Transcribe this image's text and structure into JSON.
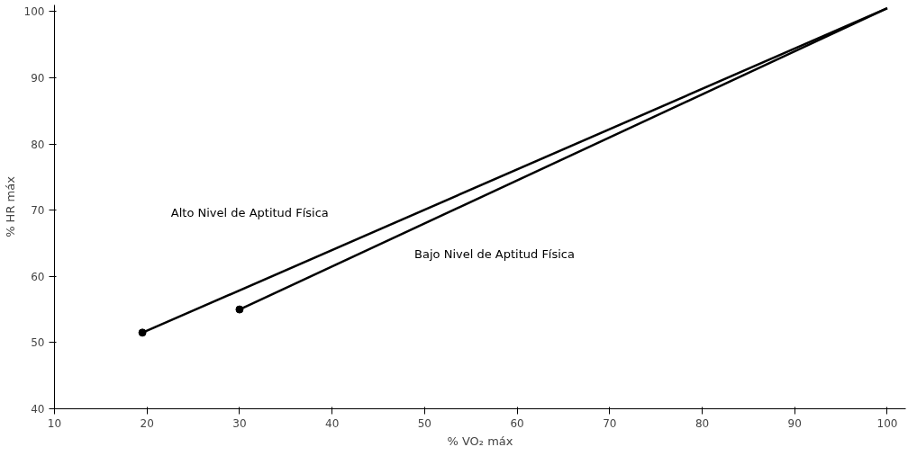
{
  "chart_data": {
    "type": "line",
    "xlabel": "% VO₂ máx",
    "ylabel": "% HR máx",
    "xlim": [
      10,
      102
    ],
    "ylim": [
      40,
      101
    ],
    "xticks": [
      10,
      20,
      30,
      40,
      50,
      60,
      70,
      80,
      90,
      100
    ],
    "yticks": [
      40,
      50,
      60,
      70,
      80,
      90,
      100
    ],
    "series": [
      {
        "name": "Alto Nivel de Aptitud Física",
        "color": "#000000",
        "x": [
          19.5,
          100
        ],
        "values": [
          51.5,
          100.5
        ]
      },
      {
        "name": "Bajo Nivel de Aptitud Física",
        "color": "#000000",
        "x": [
          30,
          100
        ],
        "values": [
          55,
          100.5
        ]
      },
      {
        "type": "scatter",
        "color": "#000000",
        "x": [
          19.5,
          30
        ],
        "values": [
          51.5,
          55
        ]
      }
    ],
    "grid": false,
    "line_style": "solid"
  }
}
